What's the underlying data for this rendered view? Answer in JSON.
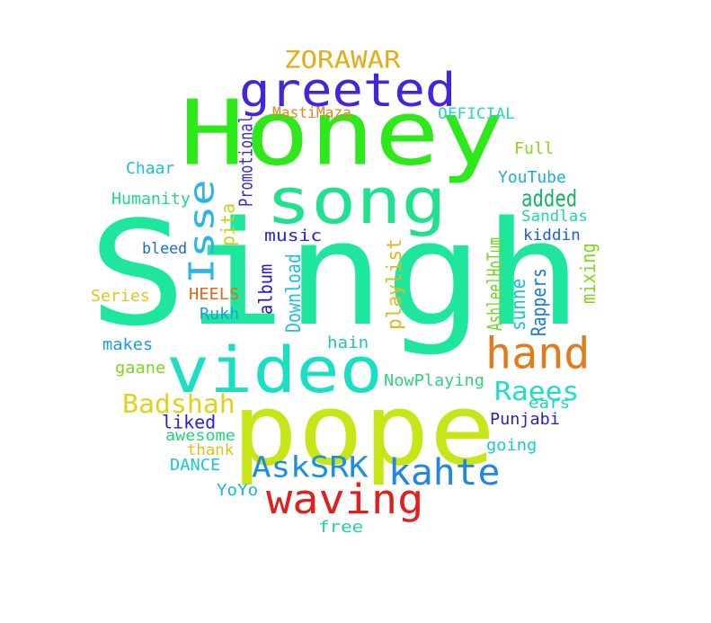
{
  "words": [
    {
      "text": "Singh",
      "color": "#1ee69c"
    },
    {
      "text": "Honey",
      "color": "#2ee81a"
    },
    {
      "text": "pope",
      "color": "#c8e617"
    },
    {
      "text": "video",
      "color": "#1bdfc2"
    },
    {
      "text": "song",
      "color": "#22e18e"
    },
    {
      "text": "greeted",
      "color": "#4425dc"
    },
    {
      "text": "hand",
      "color": "#e27c1a"
    },
    {
      "text": "waving",
      "color": "#e0201e"
    },
    {
      "text": "kahte",
      "color": "#1f86e3"
    },
    {
      "text": "AskSRK",
      "color": "#1a8fe0"
    },
    {
      "text": "ZORAWAR",
      "color": "#e2ad1c"
    },
    {
      "text": "Isse",
      "color": "#28b6e6"
    },
    {
      "text": "added",
      "color": "#19b26a"
    },
    {
      "text": "Badshah",
      "color": "#e2d117"
    },
    {
      "text": "Raees",
      "color": "#1bdfc8"
    },
    {
      "text": "liked",
      "color": "#2a1fd6"
    },
    {
      "text": "music",
      "color": "#2727c8"
    },
    {
      "text": "OFFICIAL",
      "color": "#28d6c0"
    },
    {
      "text": "MastiMaza",
      "color": "#e28a1e"
    },
    {
      "text": "Promotional",
      "color": "#3d2bd0"
    },
    {
      "text": "Full",
      "color": "#8ad61e"
    },
    {
      "text": "Chaar",
      "color": "#1ebfd6"
    },
    {
      "text": "YouTube",
      "color": "#1aaee0"
    },
    {
      "text": "Humanity",
      "color": "#1ed68a"
    },
    {
      "text": "pita",
      "color": "#c8d21a"
    },
    {
      "text": "Sandlas",
      "color": "#1ed6b0"
    },
    {
      "text": "kiddin",
      "color": "#1a5fd8"
    },
    {
      "text": "bleed",
      "color": "#1a6ad6"
    },
    {
      "text": "album",
      "color": "#2618c8"
    },
    {
      "text": "Download",
      "color": "#1ebfe0"
    },
    {
      "text": "playlist",
      "color": "#e2b81a"
    },
    {
      "text": "AshleelHoTum",
      "color": "#6fd61e"
    },
    {
      "text": "sunne",
      "color": "#1ac0d8"
    },
    {
      "text": "Rappers",
      "color": "#1a7ad6"
    },
    {
      "text": "mixing",
      "color": "#7fd61e"
    },
    {
      "text": "HEELS",
      "color": "#e06a1a"
    },
    {
      "text": "Series",
      "color": "#e2c61a"
    },
    {
      "text": "Rukh",
      "color": "#1aa0d8"
    },
    {
      "text": "makes",
      "color": "#1a9ee0"
    },
    {
      "text": "hain",
      "color": "#1ec8a8"
    },
    {
      "text": "gaane",
      "color": "#7ed61e"
    },
    {
      "text": "NowPlaying",
      "color": "#2ed67a"
    },
    {
      "text": "ears",
      "color": "#1ad6c0"
    },
    {
      "text": "Punjabi",
      "color": "#2a1fc8"
    },
    {
      "text": "awesome",
      "color": "#1ed67a"
    },
    {
      "text": "thank",
      "color": "#e2c01a"
    },
    {
      "text": "going",
      "color": "#1ac8d6"
    },
    {
      "text": "DANCE",
      "color": "#1ac8d0"
    },
    {
      "text": "YoYo",
      "color": "#1ab6e0"
    },
    {
      "text": "free",
      "color": "#1ed6a0"
    }
  ]
}
